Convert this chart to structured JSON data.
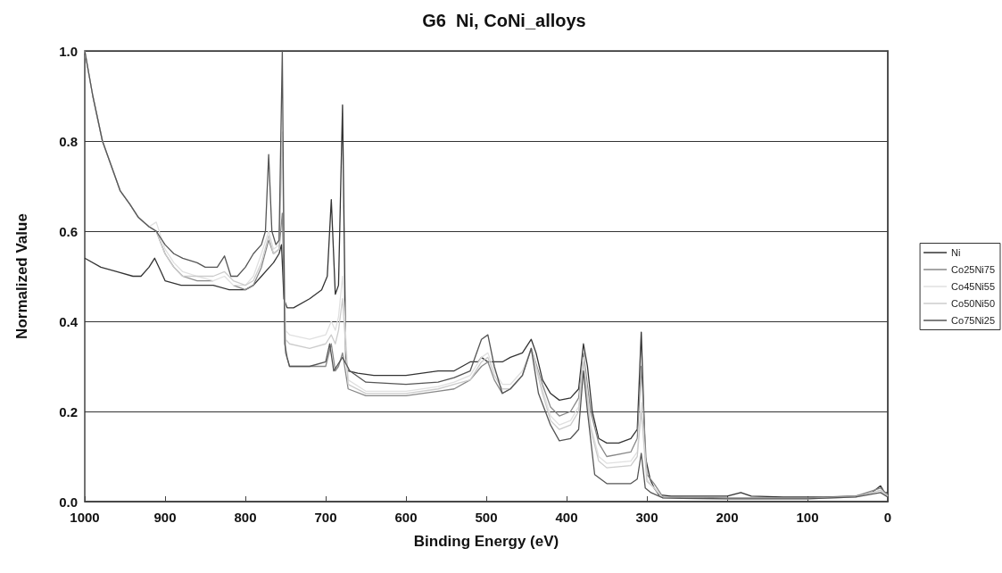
{
  "chart_data": {
    "type": "line",
    "title": "G6  Ni, CoNi_alloys",
    "xlabel": "Binding Energy (eV)",
    "ylabel": "Normalized Value",
    "xlim": [
      1000,
      0
    ],
    "xticks": [
      0,
      100,
      200,
      300,
      400,
      500,
      600,
      700,
      800,
      900,
      1000
    ],
    "ylim": [
      0,
      1
    ],
    "yticks": [
      {
        "value": 0,
        "label": "0.0"
      },
      {
        "value": 0.2,
        "label": "0.2"
      },
      {
        "value": 0.4,
        "label": "0.4"
      },
      {
        "value": 0.6,
        "label": "0.6"
      },
      {
        "value": 0.8,
        "label": "0.8"
      },
      {
        "value": 1,
        "label": "1.0"
      }
    ],
    "grid": "y",
    "legend": "right",
    "marker": "none",
    "line_style": "solid",
    "series": [
      {
        "name": "Ni",
        "color": "#333333",
        "x": [
          1000,
          980,
          960,
          940,
          930,
          920,
          913,
          905,
          900,
          880,
          860,
          840,
          820,
          800,
          790,
          780,
          770,
          765,
          758,
          755,
          752,
          748,
          740,
          720,
          705,
          698,
          693,
          688,
          684,
          679,
          675,
          672,
          660,
          640,
          620,
          600,
          580,
          560,
          540,
          530,
          520,
          510,
          506,
          498,
          490,
          480,
          470,
          455,
          444,
          438,
          430,
          420,
          409,
          395,
          385,
          379,
          374,
          368,
          360,
          350,
          335,
          320,
          312,
          307,
          302,
          296,
          291,
          285,
          270,
          240,
          200,
          183,
          170,
          130,
          80,
          40,
          20,
          9,
          4,
          0
        ],
        "values": [
          0.54,
          0.52,
          0.51,
          0.5,
          0.5,
          0.52,
          0.54,
          0.51,
          0.49,
          0.48,
          0.48,
          0.48,
          0.47,
          0.47,
          0.48,
          0.5,
          0.52,
          0.53,
          0.55,
          0.57,
          0.45,
          0.43,
          0.43,
          0.45,
          0.47,
          0.5,
          0.67,
          0.46,
          0.48,
          0.88,
          0.32,
          0.29,
          0.285,
          0.28,
          0.28,
          0.28,
          0.285,
          0.29,
          0.29,
          0.3,
          0.31,
          0.31,
          0.32,
          0.31,
          0.31,
          0.31,
          0.32,
          0.33,
          0.36,
          0.33,
          0.27,
          0.24,
          0.225,
          0.23,
          0.25,
          0.35,
          0.3,
          0.2,
          0.14,
          0.13,
          0.13,
          0.14,
          0.16,
          0.376,
          0.1,
          0.05,
          0.03,
          0.015,
          0.012,
          0.012,
          0.012,
          0.02,
          0.012,
          0.01,
          0.01,
          0.012,
          0.02,
          0.035,
          0.02,
          0.02
        ]
      },
      {
        "name": "Co25Ni75",
        "color": "#888888",
        "x": [
          1000,
          990,
          978,
          966,
          956,
          944,
          933,
          920,
          911,
          900,
          889,
          878,
          860,
          840,
          826,
          815,
          800,
          790,
          780,
          771,
          765,
          758,
          754,
          750,
          745,
          720,
          700,
          693,
          688,
          684,
          679,
          672,
          650,
          600,
          560,
          540,
          520,
          506,
          498,
          490,
          480,
          470,
          455,
          444,
          430,
          420,
          409,
          395,
          385,
          379,
          370,
          360,
          350,
          320,
          312,
          307,
          300,
          291,
          280,
          200,
          100,
          40,
          9,
          0
        ],
        "values": [
          1,
          0.9,
          0.8,
          0.74,
          0.69,
          0.66,
          0.63,
          0.61,
          0.6,
          0.55,
          0.52,
          0.5,
          0.49,
          0.49,
          null,
          0.48,
          0.47,
          0.48,
          0.52,
          0.58,
          0.55,
          0.56,
          0.64,
          0.33,
          0.3,
          0.3,
          0.3,
          0.35,
          0.29,
          0.3,
          0.33,
          0.25,
          0.235,
          0.235,
          0.245,
          0.25,
          0.27,
          0.3,
          0.31,
          0.27,
          0.24,
          0.25,
          0.28,
          0.34,
          0.26,
          0.21,
          0.19,
          0.2,
          0.23,
          0.33,
          0.2,
          0.13,
          0.1,
          0.11,
          0.14,
          0.3,
          0.06,
          0.04,
          0.01,
          0.008,
          0.008,
          0.012,
          0.03,
          0.015
        ]
      },
      {
        "name": "Co45Ni55",
        "color": "#e0e0e0",
        "x": [
          1000,
          990,
          978,
          966,
          956,
          944,
          933,
          920,
          911,
          900,
          889,
          878,
          860,
          840,
          826,
          815,
          800,
          790,
          780,
          771,
          765,
          758,
          754,
          750,
          745,
          720,
          700,
          693,
          688,
          684,
          679,
          672,
          650,
          600,
          560,
          540,
          520,
          506,
          498,
          490,
          480,
          470,
          455,
          444,
          430,
          420,
          409,
          395,
          385,
          379,
          370,
          360,
          350,
          320,
          312,
          307,
          300,
          291,
          280,
          200,
          100,
          40,
          9,
          0
        ],
        "values": [
          1,
          0.9,
          0.8,
          0.74,
          0.69,
          0.66,
          0.63,
          0.61,
          0.62,
          0.56,
          0.53,
          0.51,
          0.5,
          0.49,
          0.5,
          0.48,
          0.48,
          0.5,
          0.55,
          0.6,
          0.56,
          0.57,
          0.82,
          0.38,
          0.37,
          0.36,
          0.37,
          0.4,
          0.38,
          0.41,
          0.5,
          0.27,
          0.245,
          0.245,
          0.255,
          0.265,
          0.28,
          0.32,
          0.33,
          0.29,
          0.26,
          0.26,
          0.29,
          0.34,
          0.25,
          0.19,
          0.17,
          0.18,
          0.21,
          0.32,
          0.17,
          0.1,
          0.085,
          0.09,
          0.11,
          0.22,
          0.05,
          0.03,
          0.008,
          0.006,
          0.006,
          0.01,
          0.025,
          0.012
        ]
      },
      {
        "name": "Co50Ni50",
        "color": "#cccccc",
        "x": [
          1000,
          990,
          978,
          966,
          956,
          944,
          933,
          920,
          911,
          900,
          889,
          878,
          860,
          840,
          826,
          815,
          800,
          790,
          780,
          771,
          765,
          758,
          754,
          750,
          745,
          720,
          700,
          693,
          688,
          684,
          679,
          672,
          650,
          600,
          560,
          540,
          520,
          506,
          498,
          490,
          480,
          470,
          455,
          444,
          430,
          420,
          409,
          395,
          385,
          379,
          370,
          360,
          350,
          320,
          312,
          307,
          300,
          291,
          280,
          200,
          100,
          40,
          9,
          0
        ],
        "values": [
          1,
          0.9,
          0.8,
          0.74,
          0.69,
          0.66,
          0.63,
          0.61,
          0.6,
          0.55,
          0.52,
          0.5,
          0.5,
          0.5,
          0.51,
          0.49,
          0.48,
          0.49,
          0.53,
          0.59,
          0.55,
          0.56,
          0.8,
          0.36,
          0.35,
          0.34,
          0.35,
          0.37,
          0.35,
          0.38,
          0.45,
          0.26,
          0.24,
          0.24,
          0.25,
          0.26,
          0.27,
          0.31,
          0.32,
          0.28,
          0.25,
          0.25,
          0.28,
          0.34,
          0.24,
          0.18,
          0.16,
          0.17,
          0.2,
          0.31,
          0.16,
          0.09,
          0.075,
          0.08,
          0.1,
          0.2,
          0.045,
          0.03,
          0.008,
          0.006,
          0.006,
          0.01,
          0.025,
          0.012
        ]
      },
      {
        "name": "Co75Ni25",
        "color": "#555555",
        "x": [
          1000,
          990,
          978,
          966,
          956,
          944,
          933,
          920,
          911,
          900,
          889,
          878,
          860,
          850,
          835,
          826,
          818,
          810,
          800,
          790,
          780,
          775,
          771,
          767,
          762,
          758,
          754,
          751,
          748,
          745,
          720,
          700,
          695,
          690,
          679,
          670,
          650,
          600,
          560,
          540,
          520,
          506,
          498,
          490,
          480,
          470,
          455,
          444,
          435,
          420,
          409,
          395,
          385,
          379,
          374,
          365,
          350,
          320,
          312,
          307,
          302,
          295,
          280,
          200,
          100,
          40,
          9,
          0
        ],
        "values": [
          1,
          0.9,
          0.8,
          0.74,
          0.69,
          0.66,
          0.63,
          0.61,
          0.6,
          0.57,
          0.55,
          0.54,
          0.53,
          0.52,
          0.52,
          0.545,
          0.5,
          0.5,
          0.52,
          0.55,
          0.57,
          0.6,
          0.77,
          0.6,
          0.57,
          0.58,
          1,
          0.35,
          0.32,
          0.3,
          0.3,
          0.31,
          0.35,
          0.29,
          0.32,
          0.29,
          0.265,
          0.26,
          0.265,
          0.275,
          0.29,
          0.36,
          0.37,
          0.3,
          0.24,
          0.25,
          0.28,
          0.34,
          0.24,
          0.17,
          0.135,
          0.14,
          0.16,
          0.29,
          0.2,
          0.06,
          0.04,
          0.04,
          0.05,
          0.107,
          0.03,
          0.02,
          0.008,
          0.006,
          0.006,
          0.01,
          0.02,
          0.01
        ]
      }
    ]
  }
}
